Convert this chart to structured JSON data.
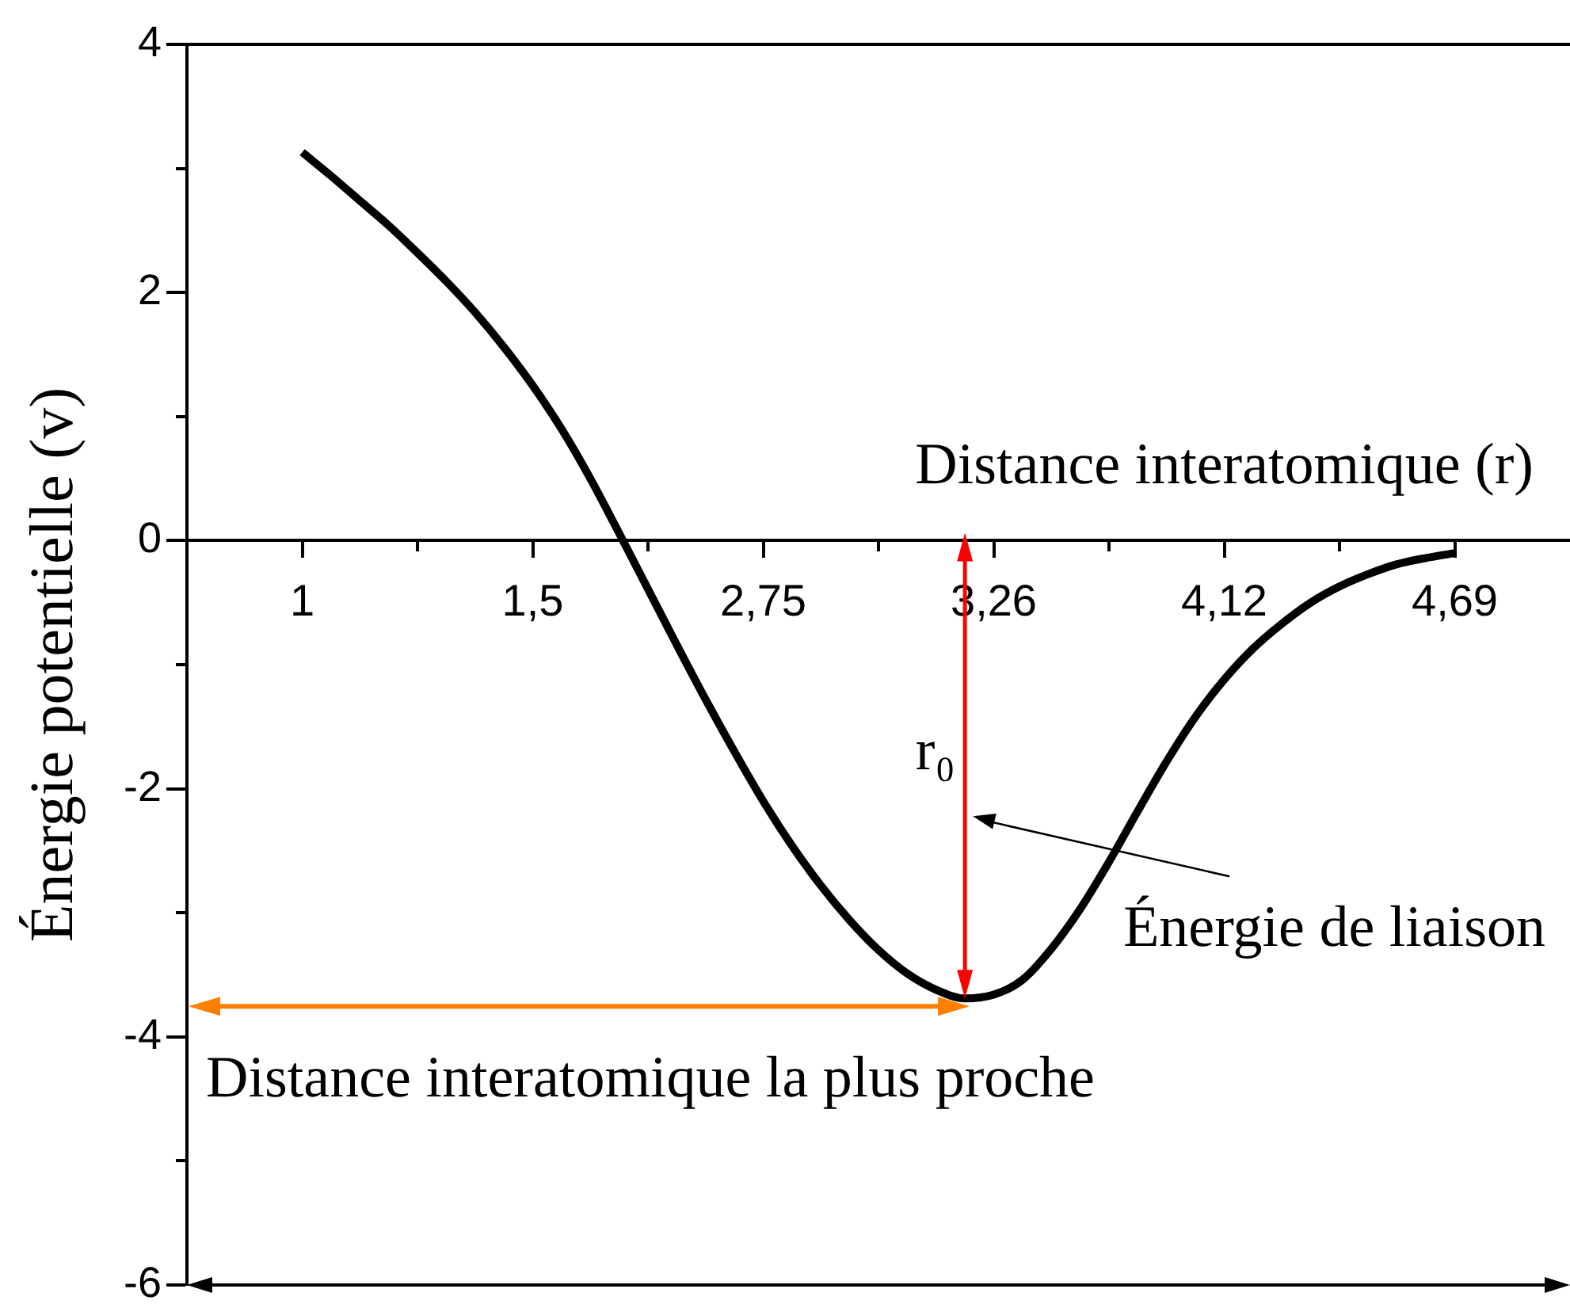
{
  "chart_data": {
    "type": "line",
    "xlabel": "Distance interatomique (r)",
    "ylabel": "Énergie potentielle (v)",
    "categories": [
      "1",
      null,
      null,
      null,
      null,
      null,
      null,
      null,
      "1,5",
      null,
      null,
      null,
      null,
      null,
      null,
      null,
      "2,75",
      null,
      null,
      null,
      null,
      null,
      null,
      null,
      "3,26",
      null,
      null,
      null,
      null,
      null,
      null,
      null,
      "4,12",
      null,
      null,
      null,
      null,
      null,
      null,
      null,
      "4,69"
    ],
    "series": [
      {
        "color": "#000000",
        "values": [
          3.13,
          2.94,
          2.74,
          2.54,
          2.32,
          2.09,
          1.84,
          1.56,
          1.25,
          0.9,
          0.5,
          0.06,
          -0.39,
          -0.84,
          -1.28,
          -1.7,
          -2.1,
          -2.46,
          -2.78,
          -3.06,
          -3.3,
          -3.49,
          -3.62,
          -3.69,
          -3.66,
          -3.54,
          -3.29,
          -2.97,
          -2.59,
          -2.18,
          -1.78,
          -1.42,
          -1.12,
          -0.87,
          -0.67,
          -0.5,
          -0.37,
          -0.27,
          -0.19,
          -0.14,
          -0.1
        ]
      }
    ],
    "ylim": [
      -6,
      4
    ],
    "yticks": [
      -6,
      -4,
      -2,
      0,
      2,
      4
    ],
    "annotations": [
      "r₀",
      "Énergie de liaison",
      "Distance interatomique la plus proche"
    ]
  }
}
